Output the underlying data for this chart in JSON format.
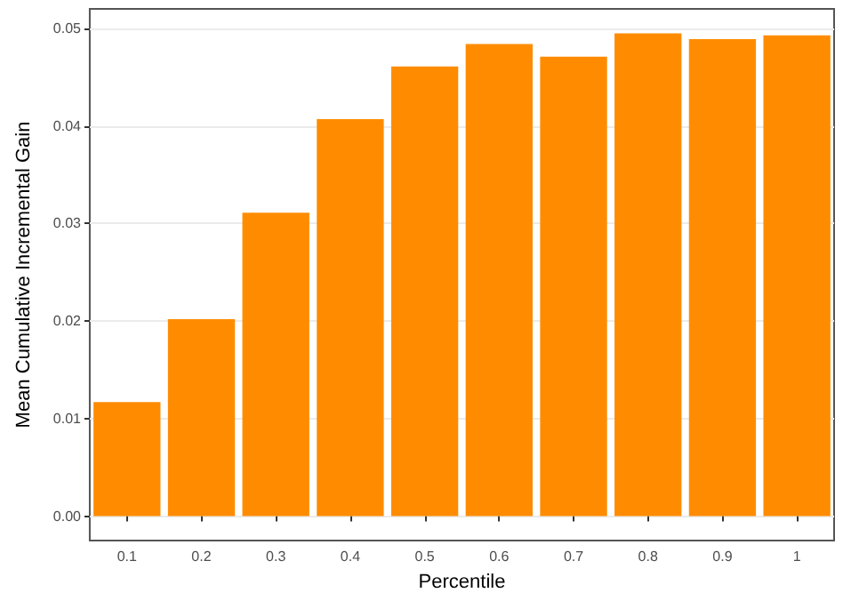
{
  "chart_data": {
    "type": "bar",
    "xlabel": "Percentile",
    "ylabel": "Mean Cumulative Incremental Gain",
    "categories": [
      "0.1",
      "0.2",
      "0.3",
      "0.4",
      "0.5",
      "0.6",
      "0.7",
      "0.8",
      "0.9",
      "1"
    ],
    "values": [
      0.0117,
      0.0202,
      0.0311,
      0.0407,
      0.0461,
      0.0484,
      0.0471,
      0.0495,
      0.0489,
      0.0493
    ],
    "color": "#ff8c00",
    "ylim": [
      -0.0025,
      0.052
    ],
    "yticks": [
      {
        "value": 0,
        "label": "0.00"
      },
      {
        "value": 0.01,
        "label": "0.01"
      },
      {
        "value": 0.02,
        "label": "0.02"
      },
      {
        "value": 0.03,
        "label": "0.03"
      },
      {
        "value": 0.04,
        "label": "0.04"
      },
      {
        "value": 0.05,
        "label": "0.05"
      }
    ],
    "grid": "y"
  }
}
